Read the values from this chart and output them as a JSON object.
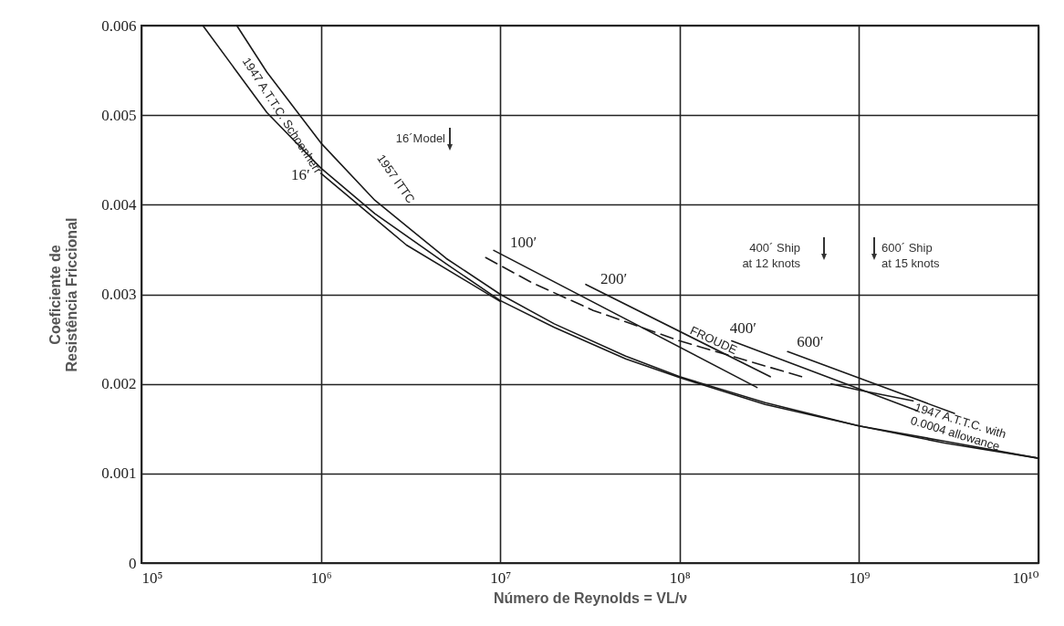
{
  "chart_data": {
    "type": "line",
    "xlabel": "Número de Reynolds = VL/ν",
    "ylabel": "Coeficiente de\nResistência Friccional",
    "log": "x",
    "grid": true,
    "xlim": [
      100000,
      10000000000
    ],
    "xticks": [
      {
        "value": 100000,
        "label": "10⁵"
      },
      {
        "value": 1000000,
        "label": "10⁶"
      },
      {
        "value": 10000000,
        "label": "10⁷"
      },
      {
        "value": 100000000,
        "label": "10⁸"
      },
      {
        "value": 1000000000,
        "label": "10⁹"
      },
      {
        "value": 10000000000,
        "label": "10¹⁰"
      }
    ],
    "ylim": [
      0,
      0.006
    ],
    "yticks": [
      0,
      0.001,
      0.002,
      0.003,
      0.004,
      0.005,
      0.006
    ],
    "series": [
      {
        "name": "1947 A.T.T.C. Schoenherr",
        "color": "#1a1a1a",
        "x": [
          220000,
          500000,
          1000000,
          2000000,
          5000000,
          10000000,
          20000000,
          50000000,
          100000000,
          300000000,
          1000000000,
          3000000000,
          10000000000
        ],
        "values": [
          0.006,
          0.00503,
          0.00441,
          0.0039,
          0.00334,
          0.00293,
          0.00263,
          0.00228,
          0.00207,
          0.00177,
          0.00153,
          0.00136,
          0.00117
        ]
      },
      {
        "name": "1957 ITTC",
        "color": "#1a1a1a",
        "x": [
          340000,
          500000,
          1000000,
          2000000,
          5000000,
          10000000,
          20000000,
          50000000,
          100000000,
          300000000,
          1000000000,
          3000000000,
          10000000000
        ],
        "values": [
          0.006,
          0.00548,
          0.00469,
          0.00405,
          0.0034,
          0.003,
          0.00267,
          0.00231,
          0.00208,
          0.00179,
          0.00153,
          0.00134,
          0.00117
        ]
      },
      {
        "name": "1947 A.T.T.C. with\n0.0004 allowance",
        "color": "#1a1a1a",
        "x": [
          700000000,
          1000000000,
          2000000000
        ],
        "values": [
          0.002,
          0.00193,
          0.00181
        ]
      },
      {
        "name": "FROUDE",
        "color": "#1a1a1a",
        "line_style": "dashed",
        "x": [
          8300000,
          15000000,
          33000000,
          100000000,
          480000000
        ],
        "values": [
          0.00341,
          0.00313,
          0.00282,
          0.00248,
          0.00208
        ]
      },
      {
        "name": "16′",
        "color": "#1a1a1a",
        "x": [
          1000000,
          3000000,
          10000000
        ],
        "values": [
          0.00435,
          0.00355,
          0.00292
        ]
      },
      {
        "name": "100′",
        "color": "#1a1a1a",
        "x": [
          9200000,
          270000000
        ],
        "values": [
          0.00349,
          0.00196
        ]
      },
      {
        "name": "200′",
        "color": "#1a1a1a",
        "x": [
          30000000,
          320000000
        ],
        "values": [
          0.00311,
          0.00208
        ]
      },
      {
        "name": "400′",
        "color": "#1a1a1a",
        "x": [
          195000000,
          2100000000
        ],
        "values": [
          0.00248,
          0.0017
        ]
      },
      {
        "name": "600′",
        "color": "#1a1a1a",
        "x": [
          400000000,
          3400000000
        ],
        "values": [
          0.00236,
          0.00167
        ]
      }
    ],
    "annotations": [
      "16´Model",
      "400´ Ship\nat 12 knots",
      "600´ Ship\nat 15 knots"
    ]
  }
}
